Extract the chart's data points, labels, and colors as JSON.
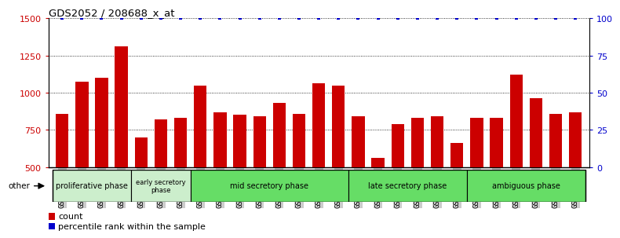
{
  "title": "GDS2052 / 208688_x_at",
  "samples": [
    "GSM109814",
    "GSM109815",
    "GSM109816",
    "GSM109817",
    "GSM109820",
    "GSM109821",
    "GSM109822",
    "GSM109824",
    "GSM109825",
    "GSM109826",
    "GSM109827",
    "GSM109828",
    "GSM109829",
    "GSM109830",
    "GSM109831",
    "GSM109834",
    "GSM109835",
    "GSM109836",
    "GSM109837",
    "GSM109838",
    "GSM109839",
    "GSM109818",
    "GSM109819",
    "GSM109823",
    "GSM109832",
    "GSM109833",
    "GSM109840"
  ],
  "counts": [
    860,
    1075,
    1100,
    1310,
    700,
    820,
    830,
    1050,
    870,
    850,
    840,
    930,
    860,
    1065,
    1050,
    840,
    560,
    790,
    830,
    840,
    660,
    830,
    830,
    1120,
    965,
    860,
    870
  ],
  "bar_color": "#cc0000",
  "dot_color": "#0000cc",
  "ylim_left": [
    500,
    1500
  ],
  "ylim_right": [
    0,
    100
  ],
  "yticks_left": [
    500,
    750,
    1000,
    1250,
    1500
  ],
  "yticks_right": [
    0,
    25,
    50,
    75,
    100
  ],
  "phases": [
    {
      "label": "proliferative phase",
      "start": 0,
      "end": 4,
      "color": "#cceecc",
      "fontsize": 7
    },
    {
      "label": "early secretory\nphase",
      "start": 4,
      "end": 7,
      "color": "#cceecc",
      "fontsize": 6
    },
    {
      "label": "mid secretory phase",
      "start": 7,
      "end": 15,
      "color": "#66dd66",
      "fontsize": 7
    },
    {
      "label": "late secretory phase",
      "start": 15,
      "end": 21,
      "color": "#66dd66",
      "fontsize": 7
    },
    {
      "label": "ambiguous phase",
      "start": 21,
      "end": 27,
      "color": "#66dd66",
      "fontsize": 7
    }
  ],
  "bar_color_legend": "#cc0000",
  "dot_color_legend": "#0000cc",
  "background_color": "#ffffff",
  "tick_bg_color": "#cccccc"
}
